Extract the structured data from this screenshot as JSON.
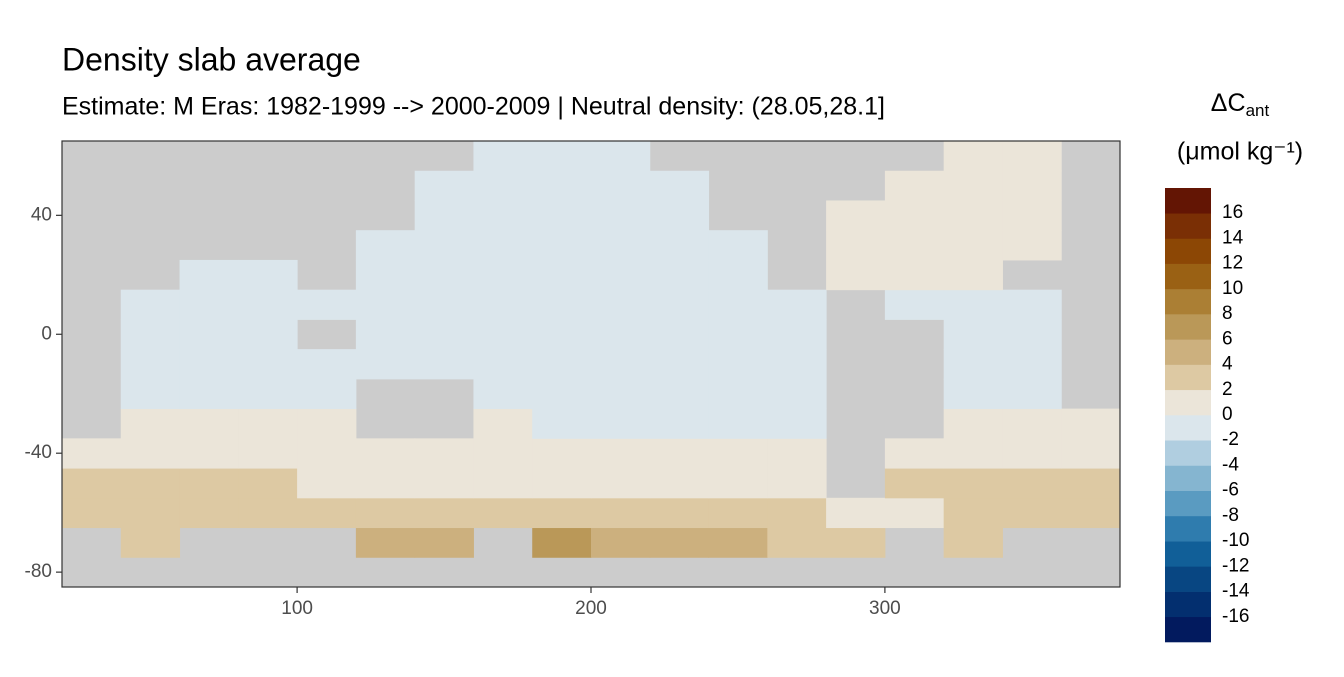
{
  "chart_data": {
    "type": "heatmap",
    "title": "Density slab average",
    "subtitle": "Estimate: M Eras: 1982-1999 --> 2000-2009 | Neutral density: (28.05,28.1]",
    "legend_title": "ΔC",
    "legend_title_sub": "ant",
    "legend_unit": "(μmol kg⁻¹)",
    "xlim": [
      20,
      380
    ],
    "ylim": [
      -85,
      65
    ],
    "xticks": [
      100,
      200,
      300
    ],
    "yticks": [
      -80,
      -40,
      0,
      40
    ],
    "x": [
      30,
      50,
      70,
      90,
      110,
      130,
      150,
      170,
      190,
      210,
      230,
      250,
      270,
      290,
      310,
      330,
      350,
      370
    ],
    "y": [
      -80,
      -70,
      -60,
      -50,
      -40,
      -30,
      -20,
      -10,
      0,
      10,
      20,
      30,
      40,
      50,
      60
    ],
    "z": [
      [
        null,
        null,
        null,
        null,
        null,
        null,
        null,
        null,
        null,
        null,
        null,
        null,
        null,
        null,
        null,
        null,
        null,
        null
      ],
      [
        null,
        3,
        null,
        null,
        null,
        4,
        4,
        null,
        6,
        4,
        4,
        5,
        3,
        3,
        null,
        3,
        null,
        null
      ],
      [
        3,
        3,
        2,
        2,
        2,
        2,
        2,
        3,
        3,
        2,
        2,
        2,
        2,
        1,
        1,
        3,
        3,
        2
      ],
      [
        3,
        3,
        2,
        2,
        1,
        1,
        1,
        1,
        1,
        1,
        1,
        1,
        1,
        null,
        2,
        3,
        3,
        2
      ],
      [
        1,
        1,
        1,
        1,
        1,
        1,
        1,
        1,
        1,
        1,
        1,
        1,
        1,
        null,
        1,
        1,
        1,
        1
      ],
      [
        null,
        1,
        1,
        1,
        1,
        null,
        null,
        1,
        -1,
        -1,
        -1,
        -1,
        -1,
        null,
        null,
        1,
        1,
        1
      ],
      [
        null,
        -1,
        -1,
        -1,
        -1,
        null,
        null,
        -1,
        -1,
        -1,
        -1,
        -1,
        -1,
        null,
        null,
        -1,
        -1,
        null
      ],
      [
        null,
        -1,
        -1,
        -1,
        -1,
        -1,
        -1,
        -1,
        -1,
        -1,
        -1,
        -1,
        -1,
        null,
        null,
        -1,
        -1,
        null
      ],
      [
        null,
        -1,
        -1,
        -1,
        null,
        -1,
        -1,
        -1,
        -1,
        -1,
        -1,
        -1,
        -1,
        null,
        null,
        -1,
        -1,
        null
      ],
      [
        null,
        -1,
        -1,
        -1,
        -1,
        -1,
        -1,
        -1,
        -1,
        -1,
        -1,
        -1,
        -1,
        null,
        -1,
        -1,
        -1,
        null
      ],
      [
        null,
        null,
        -1,
        -1,
        null,
        -1,
        -1,
        -1,
        -1,
        -1,
        -1,
        -1,
        null,
        0.5,
        1,
        1,
        null,
        null
      ],
      [
        null,
        null,
        null,
        null,
        null,
        -1,
        -1,
        -1,
        -1,
        -1,
        -1,
        -1,
        null,
        1,
        1,
        1,
        1,
        null
      ],
      [
        null,
        null,
        null,
        null,
        null,
        null,
        -1,
        -1,
        -1,
        -1,
        -1,
        null,
        null,
        1,
        1,
        1,
        1,
        null
      ],
      [
        null,
        null,
        null,
        null,
        null,
        null,
        -1,
        -1,
        -1,
        -1,
        -1,
        null,
        null,
        null,
        1,
        1,
        1,
        null
      ],
      [
        null,
        null,
        null,
        null,
        null,
        null,
        null,
        -1,
        -1,
        -1,
        null,
        null,
        null,
        null,
        null,
        0.5,
        0.5,
        null
      ]
    ],
    "color_breaks": [
      -18,
      -16,
      -14,
      -12,
      -10,
      -8,
      -6,
      -4,
      -2,
      0,
      2,
      4,
      6,
      8,
      10,
      12,
      14,
      16,
      18
    ],
    "colors": [
      "#021a5e",
      "#032f6f",
      "#084682",
      "#115f98",
      "#2f7cae",
      "#5a9bc1",
      "#85b5d0",
      "#b0cee0",
      "#dbe6ec",
      "#ebe5d9",
      "#ddc9a3",
      "#ccb07e",
      "#ba9858",
      "#ab7f34",
      "#9a6114",
      "#8c4705",
      "#7a2f05",
      "#631504"
    ],
    "legend_ticks": [
      -16,
      -14,
      -12,
      -10,
      -8,
      -6,
      -4,
      -2,
      0,
      2,
      4,
      6,
      8,
      10,
      12,
      14,
      16
    ],
    "land_color": "#cccccc"
  }
}
